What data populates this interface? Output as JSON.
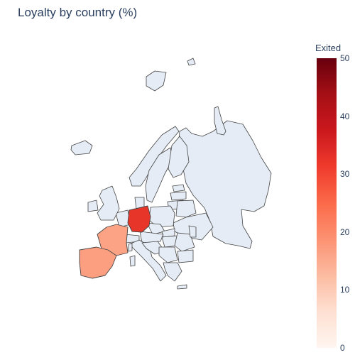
{
  "chart_data": {
    "type": "choropleth",
    "title": "Loyalty by country (%)",
    "metric": "Exited",
    "scope": "europe",
    "colorscale": "Reds",
    "colorbar": {
      "title": "Exited",
      "range": [
        0,
        50
      ],
      "ticks": [
        "0",
        "10",
        "20",
        "30",
        "40",
        "50"
      ]
    },
    "highlighted_regions": [
      {
        "country": "Germany",
        "value": 32.4
      },
      {
        "country": "France",
        "value": 16.2
      },
      {
        "country": "Spain",
        "value": 16.7
      }
    ],
    "no_data_color": "#e5ecf6",
    "border_color": "#444444"
  }
}
